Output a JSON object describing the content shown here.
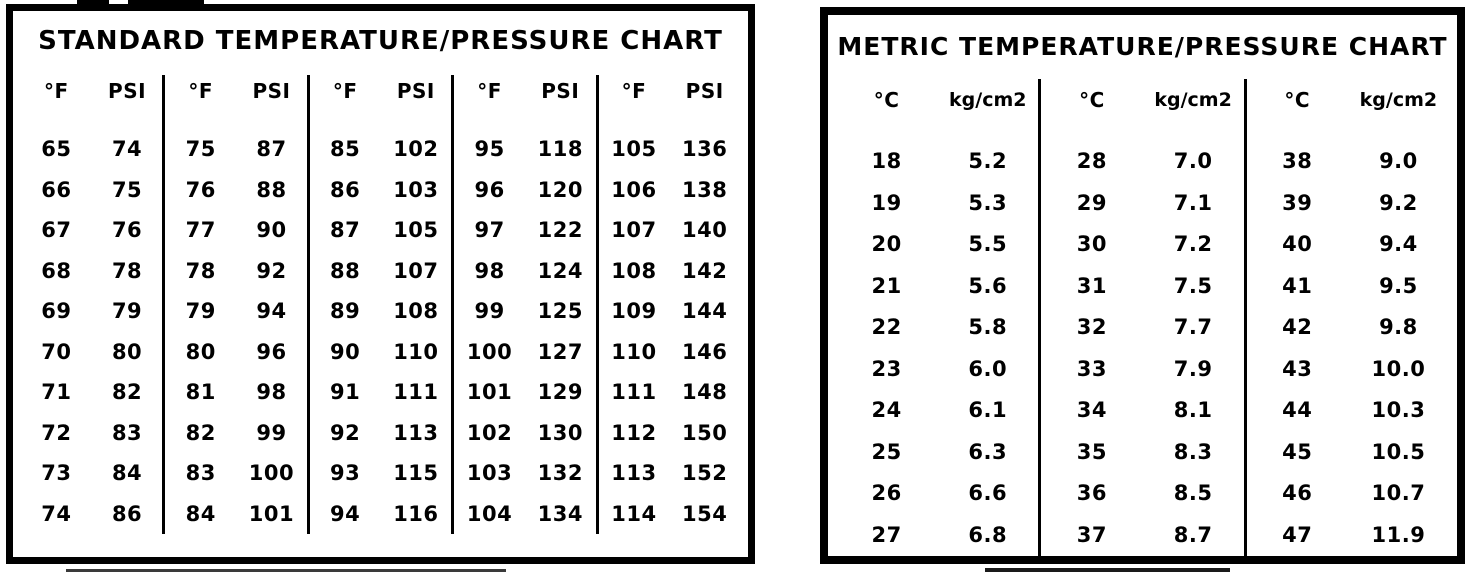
{
  "standard_chart": {
    "title": "STANDARD TEMPERATURE/PRESSURE CHART",
    "col_headers": [
      "°F",
      "PSI"
    ],
    "groups": [
      {
        "rows": [
          [
            "65",
            "74"
          ],
          [
            "66",
            "75"
          ],
          [
            "67",
            "76"
          ],
          [
            "68",
            "78"
          ],
          [
            "69",
            "79"
          ],
          [
            "70",
            "80"
          ],
          [
            "71",
            "82"
          ],
          [
            "72",
            "83"
          ],
          [
            "73",
            "84"
          ],
          [
            "74",
            "86"
          ]
        ]
      },
      {
        "rows": [
          [
            "75",
            "87"
          ],
          [
            "76",
            "88"
          ],
          [
            "77",
            "90"
          ],
          [
            "78",
            "92"
          ],
          [
            "79",
            "94"
          ],
          [
            "80",
            "96"
          ],
          [
            "81",
            "98"
          ],
          [
            "82",
            "99"
          ],
          [
            "83",
            "100"
          ],
          [
            "84",
            "101"
          ]
        ]
      },
      {
        "rows": [
          [
            "85",
            "102"
          ],
          [
            "86",
            "103"
          ],
          [
            "87",
            "105"
          ],
          [
            "88",
            "107"
          ],
          [
            "89",
            "108"
          ],
          [
            "90",
            "110"
          ],
          [
            "91",
            "111"
          ],
          [
            "92",
            "113"
          ],
          [
            "93",
            "115"
          ],
          [
            "94",
            "116"
          ]
        ]
      },
      {
        "rows": [
          [
            "95",
            "118"
          ],
          [
            "96",
            "120"
          ],
          [
            "97",
            "122"
          ],
          [
            "98",
            "124"
          ],
          [
            "99",
            "125"
          ],
          [
            "100",
            "127"
          ],
          [
            "101",
            "129"
          ],
          [
            "102",
            "130"
          ],
          [
            "103",
            "132"
          ],
          [
            "104",
            "134"
          ]
        ]
      },
      {
        "rows": [
          [
            "105",
            "136"
          ],
          [
            "106",
            "138"
          ],
          [
            "107",
            "140"
          ],
          [
            "108",
            "142"
          ],
          [
            "109",
            "144"
          ],
          [
            "110",
            "146"
          ],
          [
            "111",
            "148"
          ],
          [
            "112",
            "150"
          ],
          [
            "113",
            "152"
          ],
          [
            "114",
            "154"
          ]
        ]
      }
    ]
  },
  "metric_chart": {
    "title": "METRIC TEMPERATURE/PRESSURE CHART",
    "col_headers": [
      "°C",
      "kg/cm2"
    ],
    "groups": [
      {
        "rows": [
          [
            "18",
            "5.2"
          ],
          [
            "19",
            "5.3"
          ],
          [
            "20",
            "5.5"
          ],
          [
            "21",
            "5.6"
          ],
          [
            "22",
            "5.8"
          ],
          [
            "23",
            "6.0"
          ],
          [
            "24",
            "6.1"
          ],
          [
            "25",
            "6.3"
          ],
          [
            "26",
            "6.6"
          ],
          [
            "27",
            "6.8"
          ]
        ]
      },
      {
        "rows": [
          [
            "28",
            "7.0"
          ],
          [
            "29",
            "7.1"
          ],
          [
            "30",
            "7.2"
          ],
          [
            "31",
            "7.5"
          ],
          [
            "32",
            "7.7"
          ],
          [
            "33",
            "7.9"
          ],
          [
            "34",
            "8.1"
          ],
          [
            "35",
            "8.3"
          ],
          [
            "36",
            "8.5"
          ],
          [
            "37",
            "8.7"
          ]
        ]
      },
      {
        "rows": [
          [
            "38",
            "9.0"
          ],
          [
            "39",
            "9.2"
          ],
          [
            "40",
            "9.4"
          ],
          [
            "41",
            "9.5"
          ],
          [
            "42",
            "9.8"
          ],
          [
            "43",
            "10.0"
          ],
          [
            "44",
            "10.3"
          ],
          [
            "45",
            "10.5"
          ],
          [
            "46",
            "10.7"
          ],
          [
            "47",
            "11.9"
          ]
        ]
      }
    ]
  },
  "colors": {
    "ink": "#000000",
    "paper": "#ffffff"
  }
}
